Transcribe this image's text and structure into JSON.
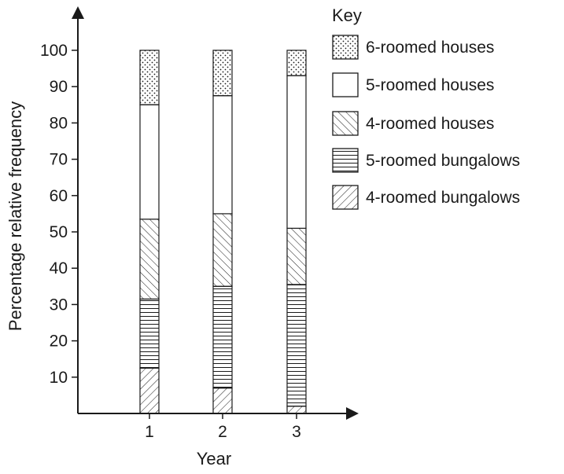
{
  "chart_data": {
    "type": "bar",
    "stacked": true,
    "categories": [
      "1",
      "2",
      "3"
    ],
    "xlabel": "Year",
    "ylabel": "Percentage relative frequency",
    "ylim": [
      0,
      100
    ],
    "yticks": [
      10,
      20,
      30,
      40,
      50,
      60,
      70,
      80,
      90,
      100
    ],
    "legend": {
      "title": "Key",
      "placement": "top-right"
    },
    "series": [
      {
        "name": "4-roomed bungalows",
        "pattern": "diagonal-up",
        "values": [
          12.5,
          7,
          2
        ]
      },
      {
        "name": "5-roomed bungalows",
        "pattern": "horizontal",
        "values": [
          19,
          28,
          33.5
        ]
      },
      {
        "name": "4-roomed houses",
        "pattern": "diagonal-down",
        "values": [
          22,
          20,
          15.5
        ]
      },
      {
        "name": "5-roomed houses",
        "pattern": "blank",
        "values": [
          31.5,
          32.5,
          42
        ]
      },
      {
        "name": "6-roomed houses",
        "pattern": "dots",
        "values": [
          15,
          12.5,
          7
        ]
      }
    ],
    "legend_order": [
      4,
      3,
      2,
      1,
      0
    ],
    "colors": {
      "ink": "#1a1a1a",
      "background": "#ffffff"
    }
  }
}
